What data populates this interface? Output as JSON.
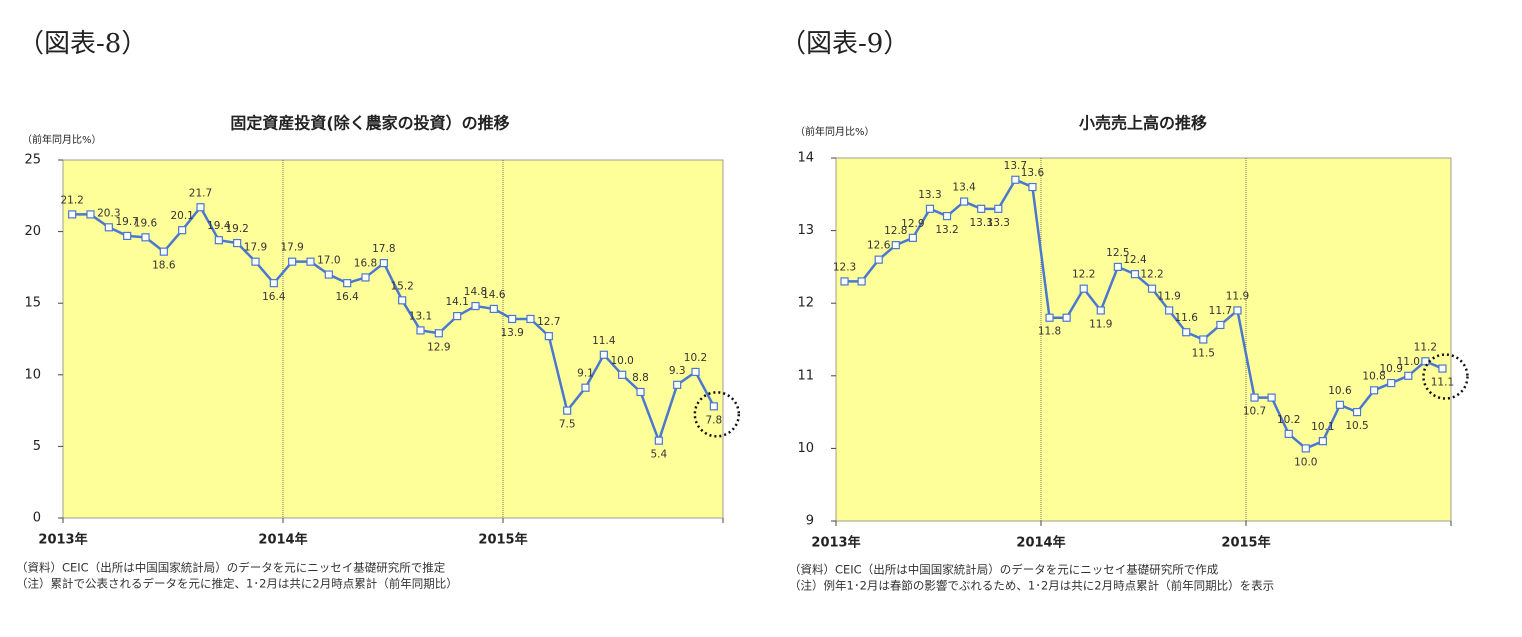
{
  "chart_data": [
    {
      "type": "line",
      "figure_label": "（図表-8）",
      "title": "固定資産投資(除く農家の投資）の推移",
      "unit_label": "（前年同月比%）",
      "categories": [
        null,
        null,
        null,
        null,
        null,
        null,
        null,
        null,
        null,
        null,
        null,
        null,
        null,
        null,
        null,
        null,
        null,
        null,
        null,
        null,
        null,
        null,
        null,
        null,
        null,
        null,
        null,
        null,
        null,
        null,
        null,
        null,
        null,
        null,
        null,
        null
      ],
      "xtick_labels": [
        "2013年",
        "2014年",
        "2015年"
      ],
      "series": [
        {
          "color": "#4a78d0",
          "values": [
            21.2,
            21.2,
            20.3,
            19.7,
            19.6,
            18.6,
            20.1,
            21.7,
            19.4,
            19.2,
            17.9,
            16.4,
            17.9,
            17.9,
            17.0,
            16.4,
            16.8,
            17.8,
            15.2,
            13.1,
            12.9,
            14.1,
            14.8,
            14.6,
            13.9,
            13.9,
            12.7,
            7.5,
            9.1,
            11.4,
            10.0,
            8.8,
            5.4,
            9.3,
            10.2,
            7.8
          ],
          "value_labels": [
            "21.2",
            null,
            "20.3",
            "19.7",
            "19.6",
            "18.6",
            "20.1",
            "21.7",
            "19.4",
            "19.2",
            "17.9",
            "16.4",
            "17.9",
            null,
            "17.0",
            "16.4",
            "16.8",
            "17.8",
            "15.2",
            "13.1",
            "12.9",
            "14.1",
            "14.8",
            "14.6",
            "13.9",
            null,
            "12.7",
            "7.5",
            "9.1",
            "11.4",
            "10.0",
            "8.8",
            "5.4",
            "9.3",
            "10.2",
            "7.8"
          ]
        }
      ],
      "ylim": [
        0,
        25
      ],
      "yticks": [
        0,
        5,
        10,
        15,
        20,
        25
      ],
      "notes": [
        "（資料）CEIC（出所は中国国家統計局）のデータを元にニッセイ基礎研究所で推定",
        "（注）累計で公表されるデータを元に推定、1･2月は共に2月時点累計（前年同期比）"
      ]
    },
    {
      "type": "line",
      "figure_label": "（図表-9）",
      "title": "小売売上高の推移",
      "unit_label": "（前年同月比%）",
      "categories": [
        null,
        null,
        null,
        null,
        null,
        null,
        null,
        null,
        null,
        null,
        null,
        null,
        null,
        null,
        null,
        null,
        null,
        null,
        null,
        null,
        null,
        null,
        null,
        null,
        null,
        null,
        null,
        null,
        null,
        null,
        null,
        null,
        null,
        null,
        null,
        null
      ],
      "xtick_labels": [
        "2013年",
        "2014年",
        "2015年"
      ],
      "series": [
        {
          "color": "#4a78d0",
          "values": [
            12.3,
            12.3,
            12.6,
            12.8,
            12.9,
            13.3,
            13.2,
            13.4,
            13.3,
            13.3,
            13.7,
            13.6,
            11.8,
            11.8,
            12.2,
            11.9,
            12.5,
            12.4,
            12.2,
            11.9,
            11.6,
            11.5,
            11.7,
            11.9,
            10.7,
            10.7,
            10.2,
            10.0,
            10.1,
            10.6,
            10.5,
            10.8,
            10.9,
            11.0,
            11.2,
            11.1
          ],
          "value_labels": [
            "12.3",
            null,
            "12.6",
            "12.8",
            "12.9",
            "13.3",
            "13.2",
            "13.4",
            "13.3",
            "13.3",
            "13.7",
            "13.6",
            "11.8",
            null,
            "12.2",
            "11.9",
            "12.5",
            "12.4",
            "12.2",
            "11.9",
            "11.6",
            "11.5",
            "11.7",
            "11.9",
            "10.7",
            null,
            "10.2",
            "10.0",
            "10.1",
            "10.6",
            "10.5",
            "10.8",
            "10.9",
            "11.0",
            "11.2",
            "11.1"
          ]
        }
      ],
      "ylim": [
        9,
        14
      ],
      "yticks": [
        9,
        10,
        11,
        12,
        13,
        14
      ],
      "notes": [
        "（資料）CEIC（出所は中国国家統計局）のデータを元にニッセイ基礎研究所で作成",
        "（注）例年1･2月は春節の影響でぶれるため、1･2月は共に2月時点累計（前年同期比）を表示"
      ]
    }
  ]
}
